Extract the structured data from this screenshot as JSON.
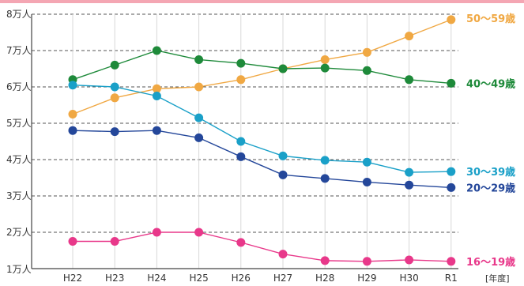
{
  "chart_data": {
    "type": "line",
    "categories": [
      "H22",
      "H23",
      "H24",
      "H25",
      "H26",
      "H27",
      "H28",
      "H29",
      "H30",
      "R1"
    ],
    "x_unit": "[年度]",
    "y_ticks": [
      "1万人",
      "2万人",
      "3万人",
      "4万人",
      "5万人",
      "6万人",
      "7万人",
      "8万人"
    ],
    "ylim": [
      1,
      8
    ],
    "grid": true,
    "legend": "inline-right",
    "series": [
      {
        "name": "50～59歳",
        "color": "#f0a843",
        "values": [
          5.25,
          5.7,
          5.95,
          6.0,
          6.2,
          6.5,
          6.75,
          6.95,
          7.4,
          7.85
        ]
      },
      {
        "name": "40～49歳",
        "color": "#1e8a3a",
        "values": [
          6.2,
          6.6,
          7.0,
          6.75,
          6.65,
          6.5,
          6.52,
          6.45,
          6.2,
          6.1
        ]
      },
      {
        "name": "30～39歳",
        "color": "#1aa0c8",
        "values": [
          6.05,
          6.0,
          5.75,
          5.15,
          4.5,
          4.1,
          3.98,
          3.93,
          3.65,
          3.67
        ]
      },
      {
        "name": "20～29歳",
        "color": "#24479a",
        "values": [
          4.8,
          4.77,
          4.8,
          4.6,
          4.08,
          3.58,
          3.48,
          3.38,
          3.3,
          3.23
        ]
      },
      {
        "name": "16～19歳",
        "color": "#e8388a",
        "values": [
          1.75,
          1.75,
          2.0,
          2.0,
          1.72,
          1.4,
          1.22,
          1.2,
          1.24,
          1.2
        ]
      }
    ]
  }
}
